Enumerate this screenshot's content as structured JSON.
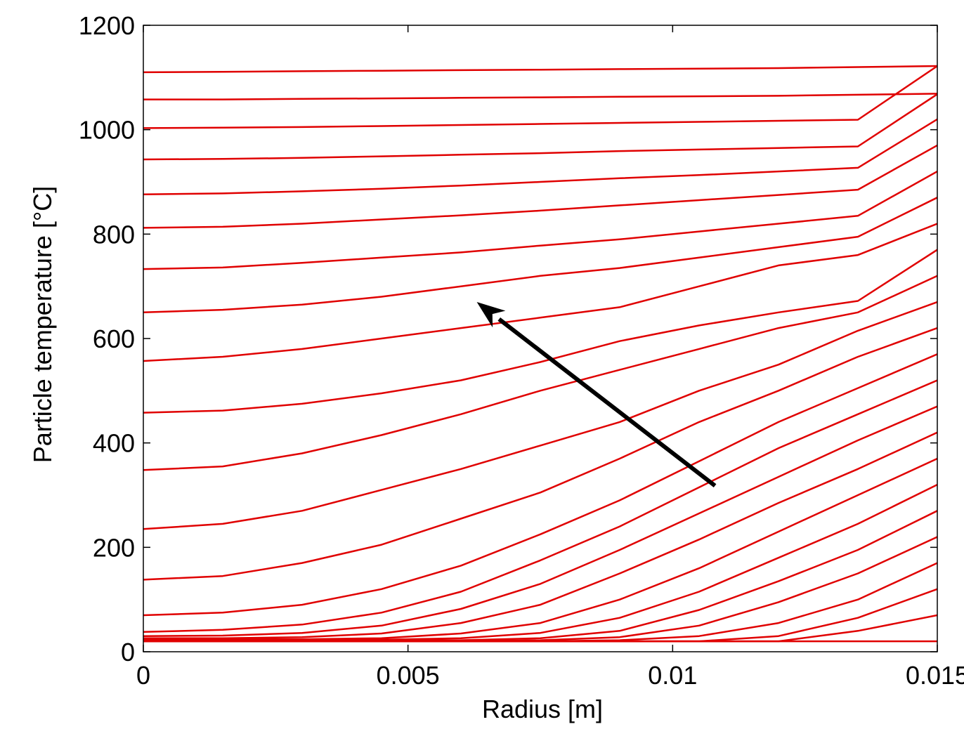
{
  "chart_data": {
    "type": "line",
    "title": "",
    "xlabel": "Radius [m]",
    "ylabel": "Particle temperature [°C]",
    "xlim": [
      0,
      0.015
    ],
    "ylim": [
      0,
      1200
    ],
    "xticks": [
      0,
      0.005,
      0.01,
      0.015
    ],
    "xtick_labels": [
      "0",
      "0.005",
      "0.01",
      "0.015"
    ],
    "yticks": [
      0,
      200,
      400,
      600,
      800,
      1000,
      1200
    ],
    "ytick_labels": [
      "0",
      "200",
      "400",
      "600",
      "800",
      "1000",
      "1200"
    ],
    "grid": false,
    "legend": "none",
    "line_color": "#e00000",
    "arrow_color": "#000000",
    "arrow": {
      "from": [
        0.0108,
        318
      ],
      "to": [
        0.0063,
        670
      ]
    },
    "x": [
      0,
      0.0015,
      0.003,
      0.0045,
      0.006,
      0.0075,
      0.009,
      0.0105,
      0.012,
      0.0135,
      0.015
    ],
    "series": [
      {
        "values": [
          20,
          20,
          20,
          20,
          20,
          20,
          20,
          20,
          20,
          20,
          20
        ]
      },
      {
        "values": [
          20,
          20,
          20,
          20,
          20,
          20,
          20,
          20,
          20,
          40,
          70
        ]
      },
      {
        "values": [
          20,
          20,
          20,
          20,
          20,
          20,
          20,
          20,
          30,
          65,
          120
        ]
      },
      {
        "values": [
          20,
          20,
          20,
          20,
          20,
          20,
          22,
          30,
          55,
          100,
          170
        ]
      },
      {
        "values": [
          20,
          20,
          20,
          20,
          20,
          22,
          28,
          50,
          95,
          150,
          220
        ]
      },
      {
        "values": [
          22,
          22,
          22,
          22,
          22,
          26,
          40,
          80,
          135,
          195,
          270
        ]
      },
      {
        "values": [
          22,
          22,
          22,
          23,
          26,
          36,
          65,
          115,
          180,
          245,
          320
        ]
      },
      {
        "values": [
          24,
          24,
          24,
          26,
          35,
          55,
          100,
          160,
          230,
          300,
          370
        ]
      },
      {
        "values": [
          26,
          26,
          28,
          35,
          55,
          90,
          150,
          215,
          285,
          350,
          420
        ]
      },
      {
        "values": [
          30,
          31,
          36,
          50,
          82,
          130,
          195,
          265,
          335,
          405,
          470
        ]
      },
      {
        "values": [
          38,
          42,
          52,
          75,
          115,
          175,
          240,
          315,
          390,
          455,
          520
        ]
      },
      {
        "values": [
          70,
          75,
          90,
          120,
          165,
          225,
          290,
          365,
          440,
          505,
          570
        ]
      },
      {
        "values": [
          138,
          145,
          170,
          205,
          255,
          305,
          370,
          440,
          500,
          565,
          620
        ]
      },
      {
        "values": [
          235,
          245,
          270,
          310,
          350,
          395,
          440,
          500,
          550,
          615,
          670
        ]
      },
      {
        "values": [
          348,
          355,
          380,
          415,
          455,
          500,
          540,
          580,
          620,
          650,
          720
        ]
      },
      {
        "values": [
          458,
          462,
          475,
          495,
          520,
          555,
          595,
          625,
          650,
          672,
          770
        ]
      },
      {
        "values": [
          557,
          565,
          580,
          600,
          620,
          640,
          660,
          700,
          740,
          760,
          820
        ]
      },
      {
        "values": [
          650,
          655,
          665,
          680,
          700,
          720,
          735,
          755,
          775,
          795,
          870
        ]
      },
      {
        "values": [
          733,
          736,
          745,
          755,
          765,
          778,
          790,
          805,
          820,
          835,
          920
        ]
      },
      {
        "values": [
          812,
          814,
          820,
          828,
          836,
          845,
          855,
          865,
          875,
          885,
          970
        ]
      },
      {
        "values": [
          876,
          878,
          882,
          887,
          893,
          900,
          907,
          913,
          920,
          927,
          1020
        ]
      },
      {
        "values": [
          943,
          944,
          946,
          949,
          952,
          955,
          959,
          962,
          965,
          968,
          1068
        ]
      },
      {
        "values": [
          1003,
          1004,
          1005,
          1007,
          1009,
          1011,
          1013,
          1015,
          1017,
          1019,
          1122
        ]
      },
      {
        "values": [
          1058,
          1058,
          1059,
          1060,
          1061,
          1062,
          1063,
          1064,
          1065,
          1067,
          1069
        ]
      },
      {
        "values": [
          1110,
          1111,
          1112,
          1113,
          1114,
          1115,
          1116,
          1117,
          1118,
          1120,
          1122
        ]
      }
    ]
  }
}
